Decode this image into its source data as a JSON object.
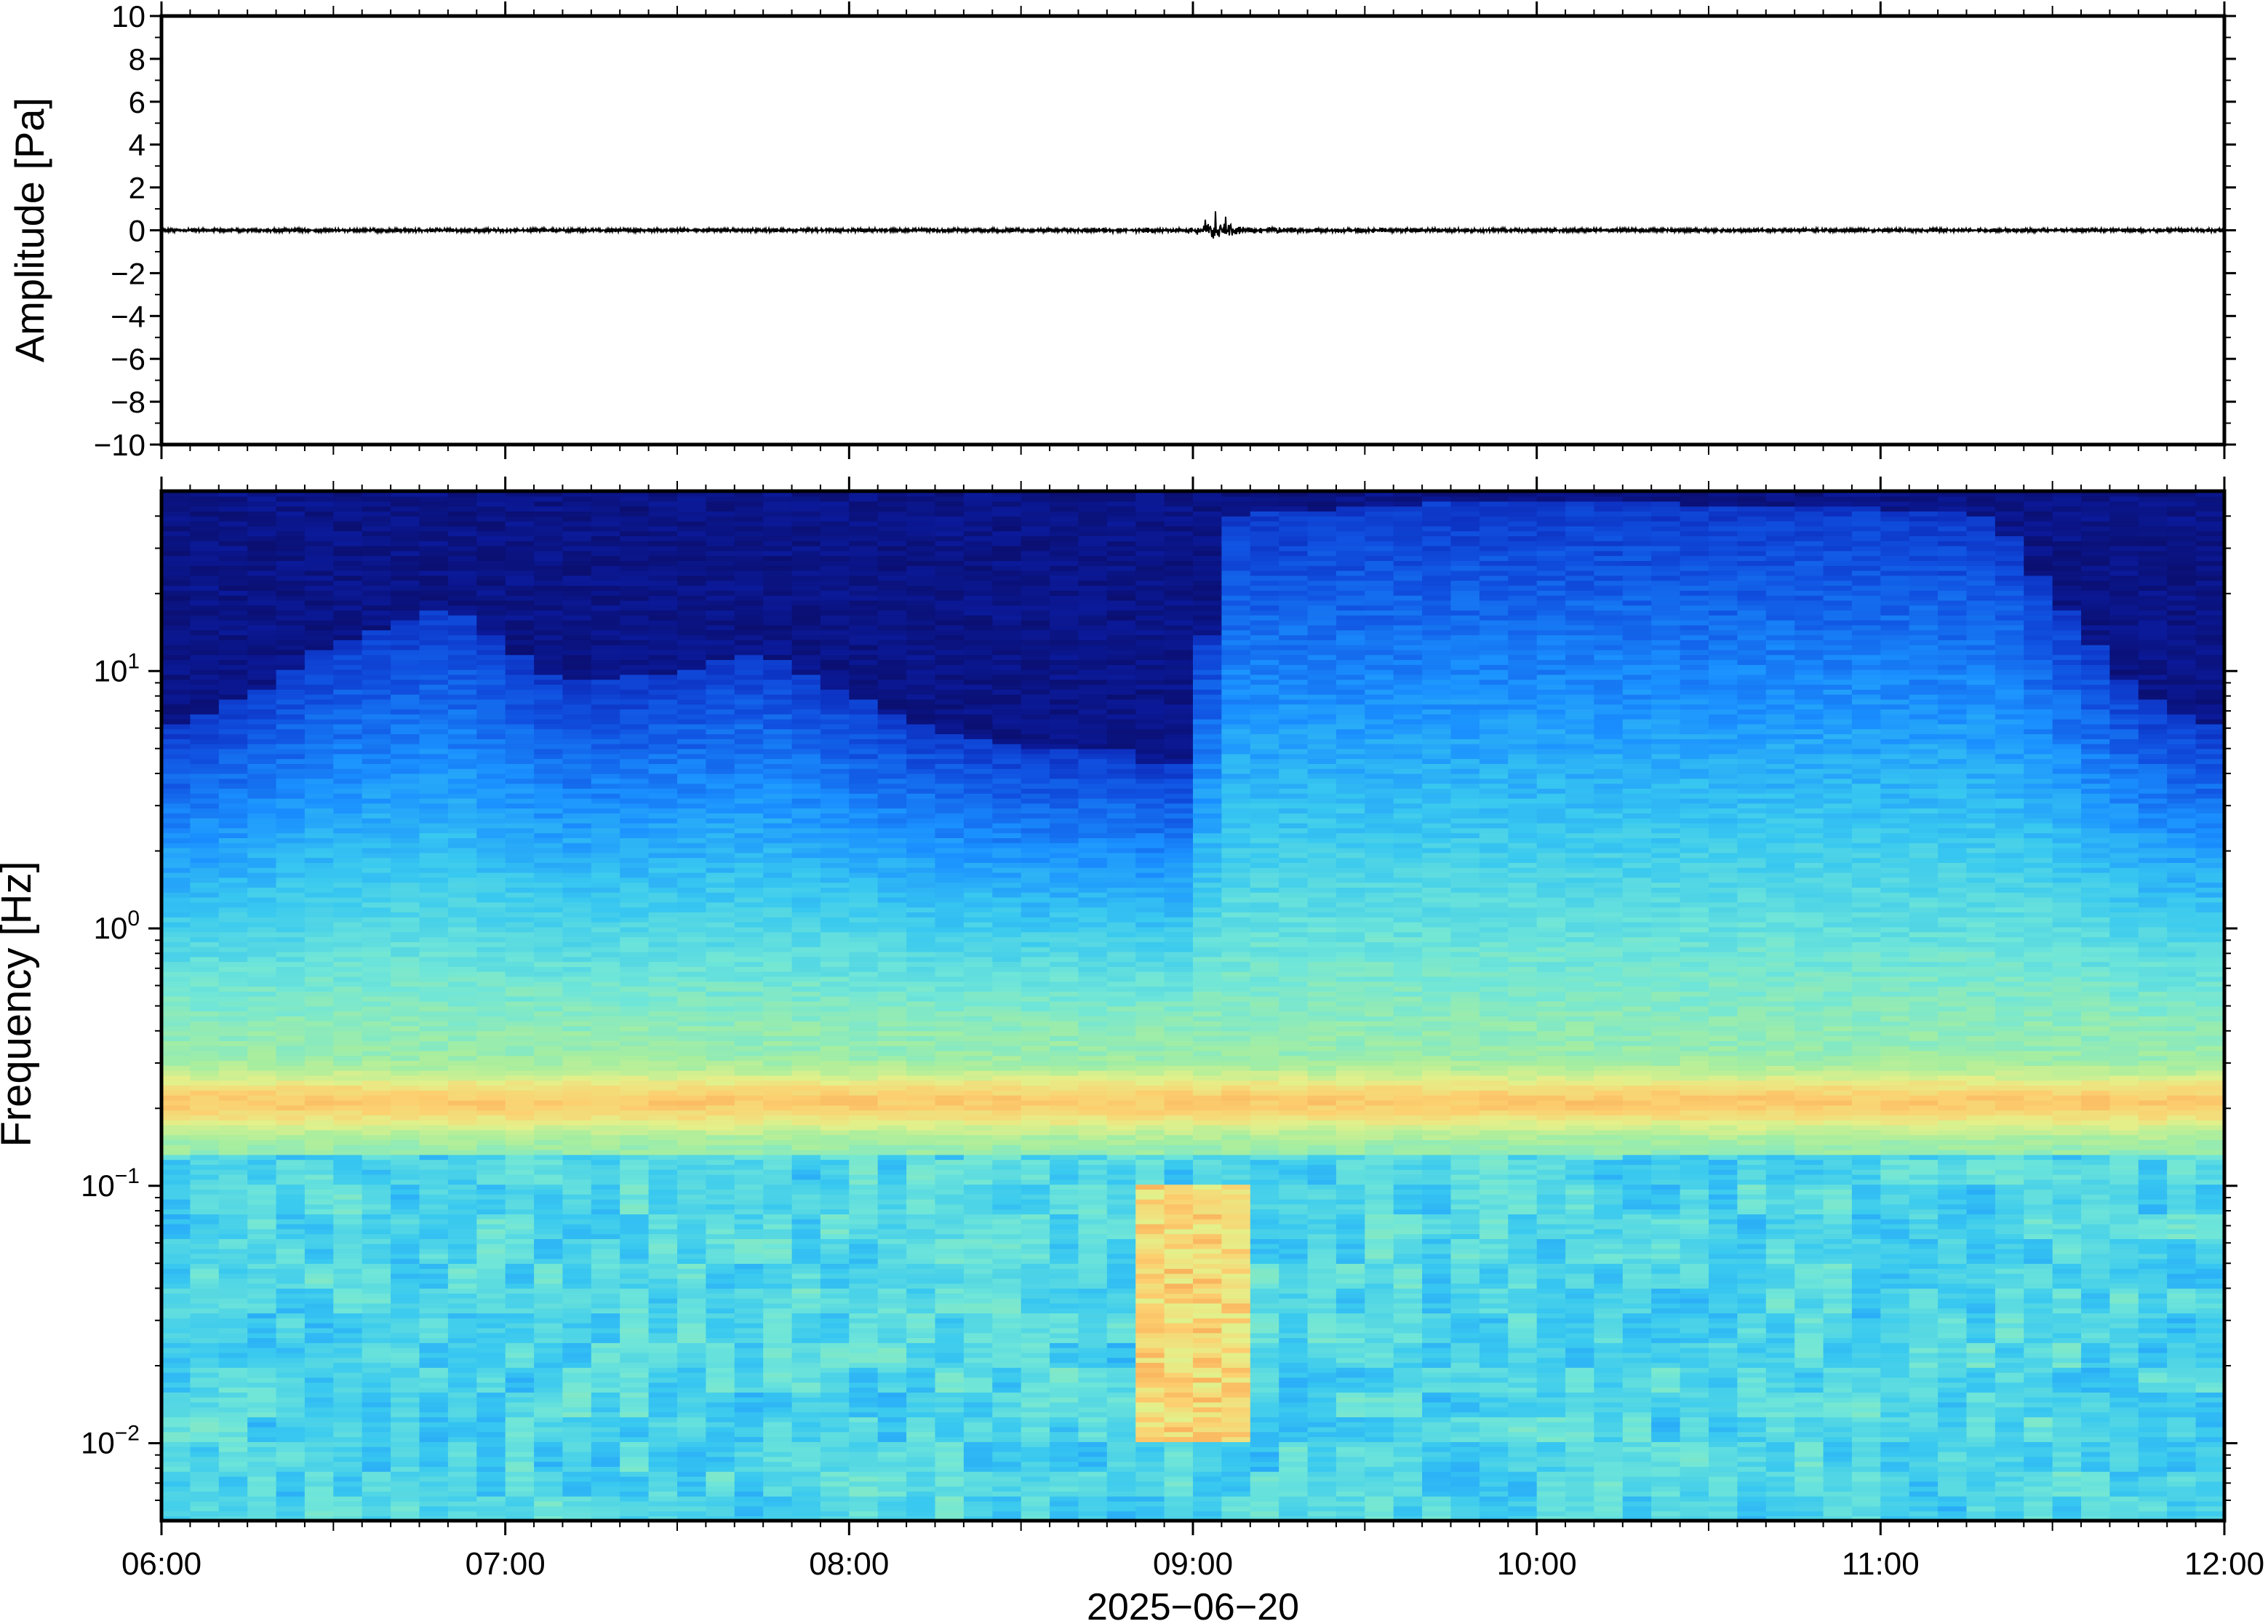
{
  "chart_data": [
    {
      "type": "line",
      "ylabel": "Amplitude [Pa]",
      "ylim": [
        -10,
        10
      ],
      "yticks": [
        "10",
        "8",
        "6",
        "4",
        "2",
        "0",
        "−2",
        "−4",
        "−6",
        "−8",
        "−10"
      ],
      "ytick_values": [
        10,
        8,
        6,
        4,
        2,
        0,
        -2,
        -4,
        -6,
        -8,
        -10
      ],
      "xlim": [
        "06:00",
        "12:00"
      ],
      "series": [
        {
          "x": [
            "06:00",
            "07:00",
            "08:00",
            "08:50",
            "09:00",
            "09:04",
            "09:10",
            "10:00",
            "11:00",
            "12:00"
          ],
          "values": [
            0.0,
            0.0,
            0.0,
            0.05,
            0.1,
            0.5,
            0.1,
            0.0,
            0.0,
            0.0
          ]
        }
      ],
      "line_color": "#000000",
      "grid": false
    },
    {
      "type": "heatmap",
      "ylabel": "Frequency [Hz]",
      "xlabel": "2025−06−20",
      "yscale": "log",
      "ylim": [
        0.005,
        50
      ],
      "ytick_bases": [
        "10",
        "10",
        "10",
        "10"
      ],
      "ytick_exponents": [
        "1",
        "0",
        "−1",
        "−2"
      ],
      "ytick_values": [
        10,
        1,
        0.1,
        0.01
      ],
      "xticks": [
        "06:00",
        "07:00",
        "08:00",
        "09:00",
        "10:00",
        "11:00",
        "12:00"
      ],
      "xlim": [
        "06:00",
        "12:00"
      ],
      "time_columns_per_hour": 12,
      "energy_top_frequency_hz": [
        6,
        8,
        13,
        18,
        9,
        10,
        12,
        8,
        6,
        5,
        5,
        5,
        4,
        5,
        40,
        42,
        45,
        45,
        45,
        44,
        43,
        42,
        40,
        20,
        8,
        6
      ],
      "energy_top_times": [
        "06:00",
        "06:15",
        "06:30",
        "06:50",
        "07:10",
        "07:30",
        "07:45",
        "08:00",
        "08:15",
        "08:30",
        "08:45",
        "08:50",
        "08:55",
        "09:00",
        "09:05",
        "09:20",
        "09:40",
        "10:00",
        "10:20",
        "10:40",
        "11:00",
        "11:10",
        "11:20",
        "11:30",
        "11:45",
        "12:00"
      ],
      "microseism_band_hz": [
        0.15,
        0.3
      ],
      "low_frequency_event": {
        "start": "08:48",
        "end": "09:10",
        "frequency_range_hz": [
          0.01,
          0.1
        ]
      },
      "colormap": [
        "#0a0e6e",
        "#0b20b0",
        "#1050e0",
        "#1a90ff",
        "#38c8f0",
        "#70e6d8",
        "#a8ee9e",
        "#e4f08a",
        "#fcd070",
        "#f8a050"
      ],
      "grid": false
    }
  ]
}
